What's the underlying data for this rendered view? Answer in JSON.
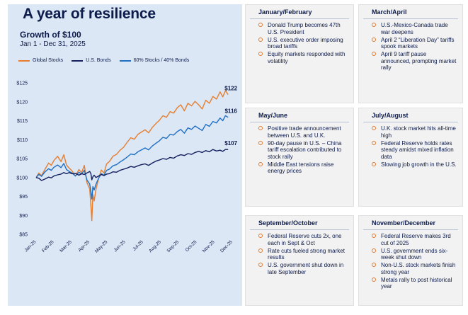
{
  "page": {
    "title": "A year of resilience",
    "subtitle": "Growth of $100",
    "date_range": "Jan 1 - Dec 31, 2025"
  },
  "legend": [
    {
      "label": "Global Stocks",
      "color": "#e67e30"
    },
    {
      "label": "U.S. Bonds",
      "color": "#14205e"
    },
    {
      "label": "60% Stocks / 40% Bonds",
      "color": "#1f6fc4"
    }
  ],
  "chart_data": {
    "type": "line",
    "title": "Growth of $100",
    "ylim": [
      85,
      125
    ],
    "yticks": [
      "$85",
      "$90",
      "$95",
      "$100",
      "$105",
      "$110",
      "$115",
      "$120",
      "$125"
    ],
    "yticks_values": [
      85,
      90,
      95,
      100,
      105,
      110,
      115,
      120,
      125
    ],
    "xticks": [
      "Jan-25",
      "Feb-25",
      "Mar-25",
      "Apr-25",
      "May-25",
      "Jun-25",
      "Jul-25",
      "Aug-25",
      "Sep-25",
      "Oct-25",
      "Nov-25",
      "Dec-25"
    ],
    "x_month_positions": [
      0,
      1,
      2,
      3,
      4,
      5,
      6,
      7,
      8,
      9,
      10,
      11
    ],
    "series": [
      {
        "name": "Global Stocks",
        "color": "#e67e30",
        "end_label": "$122",
        "points": [
          [
            0,
            100
          ],
          [
            0.15,
            101.2
          ],
          [
            0.3,
            100.5
          ],
          [
            0.5,
            102.2
          ],
          [
            0.7,
            103.8
          ],
          [
            0.85,
            103.2
          ],
          [
            1.0,
            104.5
          ],
          [
            1.2,
            105.6
          ],
          [
            1.4,
            104.2
          ],
          [
            1.55,
            106.0
          ],
          [
            1.7,
            103.3
          ],
          [
            1.85,
            102.5
          ],
          [
            2.0,
            101.8
          ],
          [
            2.2,
            100.4
          ],
          [
            2.4,
            102.1
          ],
          [
            2.55,
            101.3
          ],
          [
            2.7,
            103.2
          ],
          [
            2.85,
            98.6
          ],
          [
            3.0,
            97.0
          ],
          [
            3.07,
            92.5
          ],
          [
            3.12,
            88.6
          ],
          [
            3.18,
            95.5
          ],
          [
            3.25,
            93.8
          ],
          [
            3.35,
            96.8
          ],
          [
            3.5,
            99.8
          ],
          [
            3.65,
            102.0
          ],
          [
            3.8,
            101.2
          ],
          [
            3.95,
            103.6
          ],
          [
            4.1,
            104.2
          ],
          [
            4.3,
            105.6
          ],
          [
            4.5,
            106.1
          ],
          [
            4.7,
            107.2
          ],
          [
            4.9,
            108.0
          ],
          [
            5.1,
            109.3
          ],
          [
            5.3,
            110.5
          ],
          [
            5.5,
            110.1
          ],
          [
            5.7,
            111.4
          ],
          [
            5.9,
            112.0
          ],
          [
            6.1,
            112.6
          ],
          [
            6.3,
            111.8
          ],
          [
            6.5,
            113.2
          ],
          [
            6.7,
            114.2
          ],
          [
            6.9,
            115.1
          ],
          [
            7.1,
            116.3
          ],
          [
            7.3,
            115.9
          ],
          [
            7.5,
            117.4
          ],
          [
            7.7,
            117.0
          ],
          [
            7.9,
            118.4
          ],
          [
            8.1,
            119.2
          ],
          [
            8.3,
            117.6
          ],
          [
            8.5,
            119.6
          ],
          [
            8.7,
            118.9
          ],
          [
            8.9,
            120.1
          ],
          [
            9.1,
            119.2
          ],
          [
            9.3,
            118.1
          ],
          [
            9.5,
            120.4
          ],
          [
            9.7,
            119.6
          ],
          [
            9.9,
            121.4
          ],
          [
            10.1,
            120.7
          ],
          [
            10.3,
            122.6
          ],
          [
            10.45,
            121.3
          ],
          [
            10.6,
            122.9
          ],
          [
            10.75,
            121.9
          ]
        ]
      },
      {
        "name": "60% Stocks / 40% Bonds",
        "color": "#1f6fc4",
        "end_label": "$116",
        "points": [
          [
            0,
            100
          ],
          [
            0.15,
            100.8
          ],
          [
            0.3,
            100.3
          ],
          [
            0.5,
            101.5
          ],
          [
            0.7,
            102.3
          ],
          [
            0.85,
            101.9
          ],
          [
            1.0,
            102.7
          ],
          [
            1.2,
            103.3
          ],
          [
            1.4,
            102.6
          ],
          [
            1.55,
            103.7
          ],
          [
            1.7,
            102.1
          ],
          [
            1.85,
            101.6
          ],
          [
            2.0,
            101.2
          ],
          [
            2.2,
            100.4
          ],
          [
            2.4,
            101.4
          ],
          [
            2.55,
            100.9
          ],
          [
            2.7,
            101.9
          ],
          [
            2.85,
            99.3
          ],
          [
            3.0,
            98.3
          ],
          [
            3.07,
            96.2
          ],
          [
            3.12,
            94.3
          ],
          [
            3.18,
            97.6
          ],
          [
            3.25,
            96.7
          ],
          [
            3.35,
            98.2
          ],
          [
            3.5,
            99.8
          ],
          [
            3.65,
            101.0
          ],
          [
            3.8,
            100.6
          ],
          [
            3.95,
            101.9
          ],
          [
            4.1,
            102.2
          ],
          [
            4.3,
            103.1
          ],
          [
            4.5,
            103.4
          ],
          [
            4.7,
            104.1
          ],
          [
            4.9,
            104.7
          ],
          [
            5.1,
            105.4
          ],
          [
            5.3,
            106.2
          ],
          [
            5.5,
            106.0
          ],
          [
            5.7,
            106.8
          ],
          [
            5.9,
            107.3
          ],
          [
            6.1,
            107.8
          ],
          [
            6.3,
            107.3
          ],
          [
            6.5,
            108.3
          ],
          [
            6.7,
            109.0
          ],
          [
            6.9,
            109.7
          ],
          [
            7.1,
            110.6
          ],
          [
            7.3,
            110.3
          ],
          [
            7.5,
            111.4
          ],
          [
            7.7,
            111.2
          ],
          [
            7.9,
            112.1
          ],
          [
            8.1,
            112.7
          ],
          [
            8.3,
            111.7
          ],
          [
            8.5,
            113.1
          ],
          [
            8.7,
            112.7
          ],
          [
            8.9,
            113.6
          ],
          [
            9.1,
            113.0
          ],
          [
            9.3,
            112.4
          ],
          [
            9.5,
            114.0
          ],
          [
            9.7,
            113.5
          ],
          [
            9.9,
            114.8
          ],
          [
            10.1,
            114.4
          ],
          [
            10.3,
            115.7
          ],
          [
            10.45,
            115.0
          ],
          [
            10.6,
            116.3
          ],
          [
            10.75,
            115.9
          ]
        ]
      },
      {
        "name": "U.S. Bonds",
        "color": "#14205e",
        "end_label": "$107",
        "points": [
          [
            0,
            100
          ],
          [
            0.15,
            99.8
          ],
          [
            0.3,
            99.2
          ],
          [
            0.5,
            99.6
          ],
          [
            0.7,
            100.1
          ],
          [
            0.85,
            99.9
          ],
          [
            1.0,
            100.4
          ],
          [
            1.2,
            100.7
          ],
          [
            1.4,
            100.9
          ],
          [
            1.55,
            101.3
          ],
          [
            1.7,
            101.0
          ],
          [
            1.85,
            101.3
          ],
          [
            2.0,
            101.0
          ],
          [
            2.2,
            101.1
          ],
          [
            2.4,
            100.6
          ],
          [
            2.55,
            101.0
          ],
          [
            2.7,
            100.8
          ],
          [
            2.85,
            101.2
          ],
          [
            3.0,
            101.6
          ],
          [
            3.07,
            101.0
          ],
          [
            3.12,
            99.4
          ],
          [
            3.18,
            100.2
          ],
          [
            3.25,
            100.6
          ],
          [
            3.35,
            100.0
          ],
          [
            3.5,
            100.4
          ],
          [
            3.65,
            100.8
          ],
          [
            3.8,
            100.5
          ],
          [
            3.95,
            100.9
          ],
          [
            4.1,
            101.0
          ],
          [
            4.3,
            101.5
          ],
          [
            4.5,
            101.4
          ],
          [
            4.7,
            101.9
          ],
          [
            4.9,
            102.2
          ],
          [
            5.1,
            102.5
          ],
          [
            5.3,
            102.9
          ],
          [
            5.5,
            102.7
          ],
          [
            5.7,
            103.1
          ],
          [
            5.9,
            103.4
          ],
          [
            6.1,
            103.6
          ],
          [
            6.3,
            103.2
          ],
          [
            6.5,
            103.8
          ],
          [
            6.7,
            104.3
          ],
          [
            6.9,
            104.6
          ],
          [
            7.1,
            105.0
          ],
          [
            7.3,
            104.8
          ],
          [
            7.5,
            105.3
          ],
          [
            7.7,
            105.1
          ],
          [
            7.9,
            105.7
          ],
          [
            8.1,
            106.0
          ],
          [
            8.3,
            105.8
          ],
          [
            8.5,
            106.3
          ],
          [
            8.7,
            106.1
          ],
          [
            8.9,
            106.6
          ],
          [
            9.1,
            106.9
          ],
          [
            9.3,
            106.6
          ],
          [
            9.5,
            107.1
          ],
          [
            9.7,
            106.8
          ],
          [
            9.9,
            107.4
          ],
          [
            10.1,
            107.0
          ],
          [
            10.3,
            107.2
          ],
          [
            10.45,
            106.9
          ],
          [
            10.6,
            107.4
          ],
          [
            10.75,
            107.4
          ]
        ]
      }
    ]
  },
  "panels": [
    {
      "heading": "January/February",
      "items": [
        "Donald Trump becomes 47th U.S. President",
        "U.S. executive order imposing broad tariffs",
        "Equity markets responded with volatility"
      ]
    },
    {
      "heading": "March/April",
      "items": [
        "U.S.-Mexico-Canada trade war deepens",
        "April 2 “Liberation Day” tariffs spook markets",
        "April 9 tariff pause announced, prompting market rally"
      ]
    },
    {
      "heading": "May/June",
      "items": [
        "Positive trade announcement between U.S. and U.K.",
        "90-day pause in U.S. – China tariff escalation contributed to stock rally",
        "Middle East tensions raise energy prices"
      ]
    },
    {
      "heading": "July/August",
      "items": [
        "U.K. stock market hits all-time high",
        "Federal Reserve holds rates steady amidst mixed inflation data",
        "Slowing job growth in the U.S."
      ]
    },
    {
      "heading": "September/October",
      "items": [
        "Federal Reserve cuts 2x, one each in Sept & Oct",
        "Rate cuts fueled strong market results",
        "U.S. government shut down in late September"
      ]
    },
    {
      "heading": "November/December",
      "items": [
        "Federal Reserve makes 3rd cut of 2025",
        "U.S. government ends six-week shut down",
        "Non-U.S. stock markets finish strong year",
        "Metals rally to post historical year"
      ]
    }
  ]
}
